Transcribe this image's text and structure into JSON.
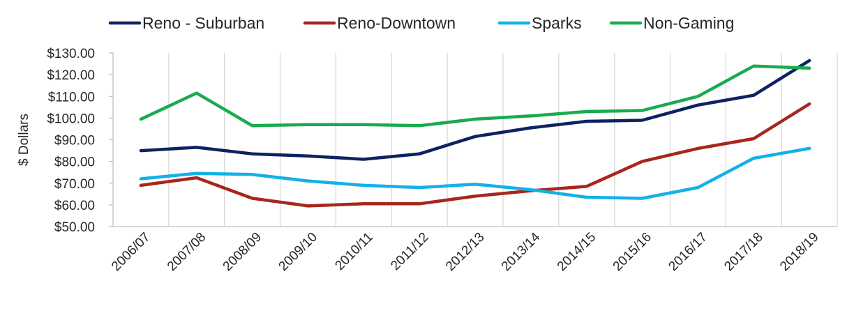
{
  "chart_data": {
    "type": "line",
    "title": "",
    "xlabel": "",
    "ylabel": "$ Dollars",
    "categories": [
      "2006/07",
      "2007/08",
      "2008/09",
      "2009/10",
      "2010/11",
      "2011/12",
      "2012/13",
      "2013/14",
      "2014/15",
      "2015/16",
      "2016/17",
      "2017/18",
      "2018/19"
    ],
    "y_ticks": [
      {
        "value": 50,
        "label": "$50.00"
      },
      {
        "value": 60,
        "label": "$60.00"
      },
      {
        "value": 70,
        "label": "$70.00"
      },
      {
        "value": 80,
        "label": "$80.00"
      },
      {
        "value": 90,
        "label": "$90.00"
      },
      {
        "value": 100,
        "label": "$100.00"
      },
      {
        "value": 110,
        "label": "$110.00"
      },
      {
        "value": 120,
        "label": "$120.00"
      },
      {
        "value": 130,
        "label": "$130.00"
      }
    ],
    "ylim": [
      50,
      130
    ],
    "grid": "vertical",
    "legend_position": "top",
    "series": [
      {
        "name": "Reno - Suburban",
        "color": "#0d2260",
        "values": [
          85,
          86.5,
          83.5,
          82.5,
          81,
          83.5,
          91.5,
          95.5,
          98.5,
          99,
          106,
          110.5,
          126.5
        ]
      },
      {
        "name": "Reno-Downtown",
        "color": "#a8261d",
        "values": [
          69,
          72.5,
          63,
          59.5,
          60.5,
          60.5,
          64,
          66.5,
          68.5,
          80,
          86,
          90.5,
          106.5
        ]
      },
      {
        "name": "Sparks",
        "color": "#13b1e8",
        "values": [
          72,
          74.5,
          74,
          71,
          69,
          68,
          69.5,
          67,
          63.5,
          63,
          68,
          81.5,
          86
        ]
      },
      {
        "name": "Non-Gaming",
        "color": "#19ab4f",
        "values": [
          99.5,
          111.5,
          96.5,
          97,
          97,
          96.5,
          99.5,
          101,
          103,
          103.5,
          110,
          124,
          123
        ]
      }
    ]
  }
}
